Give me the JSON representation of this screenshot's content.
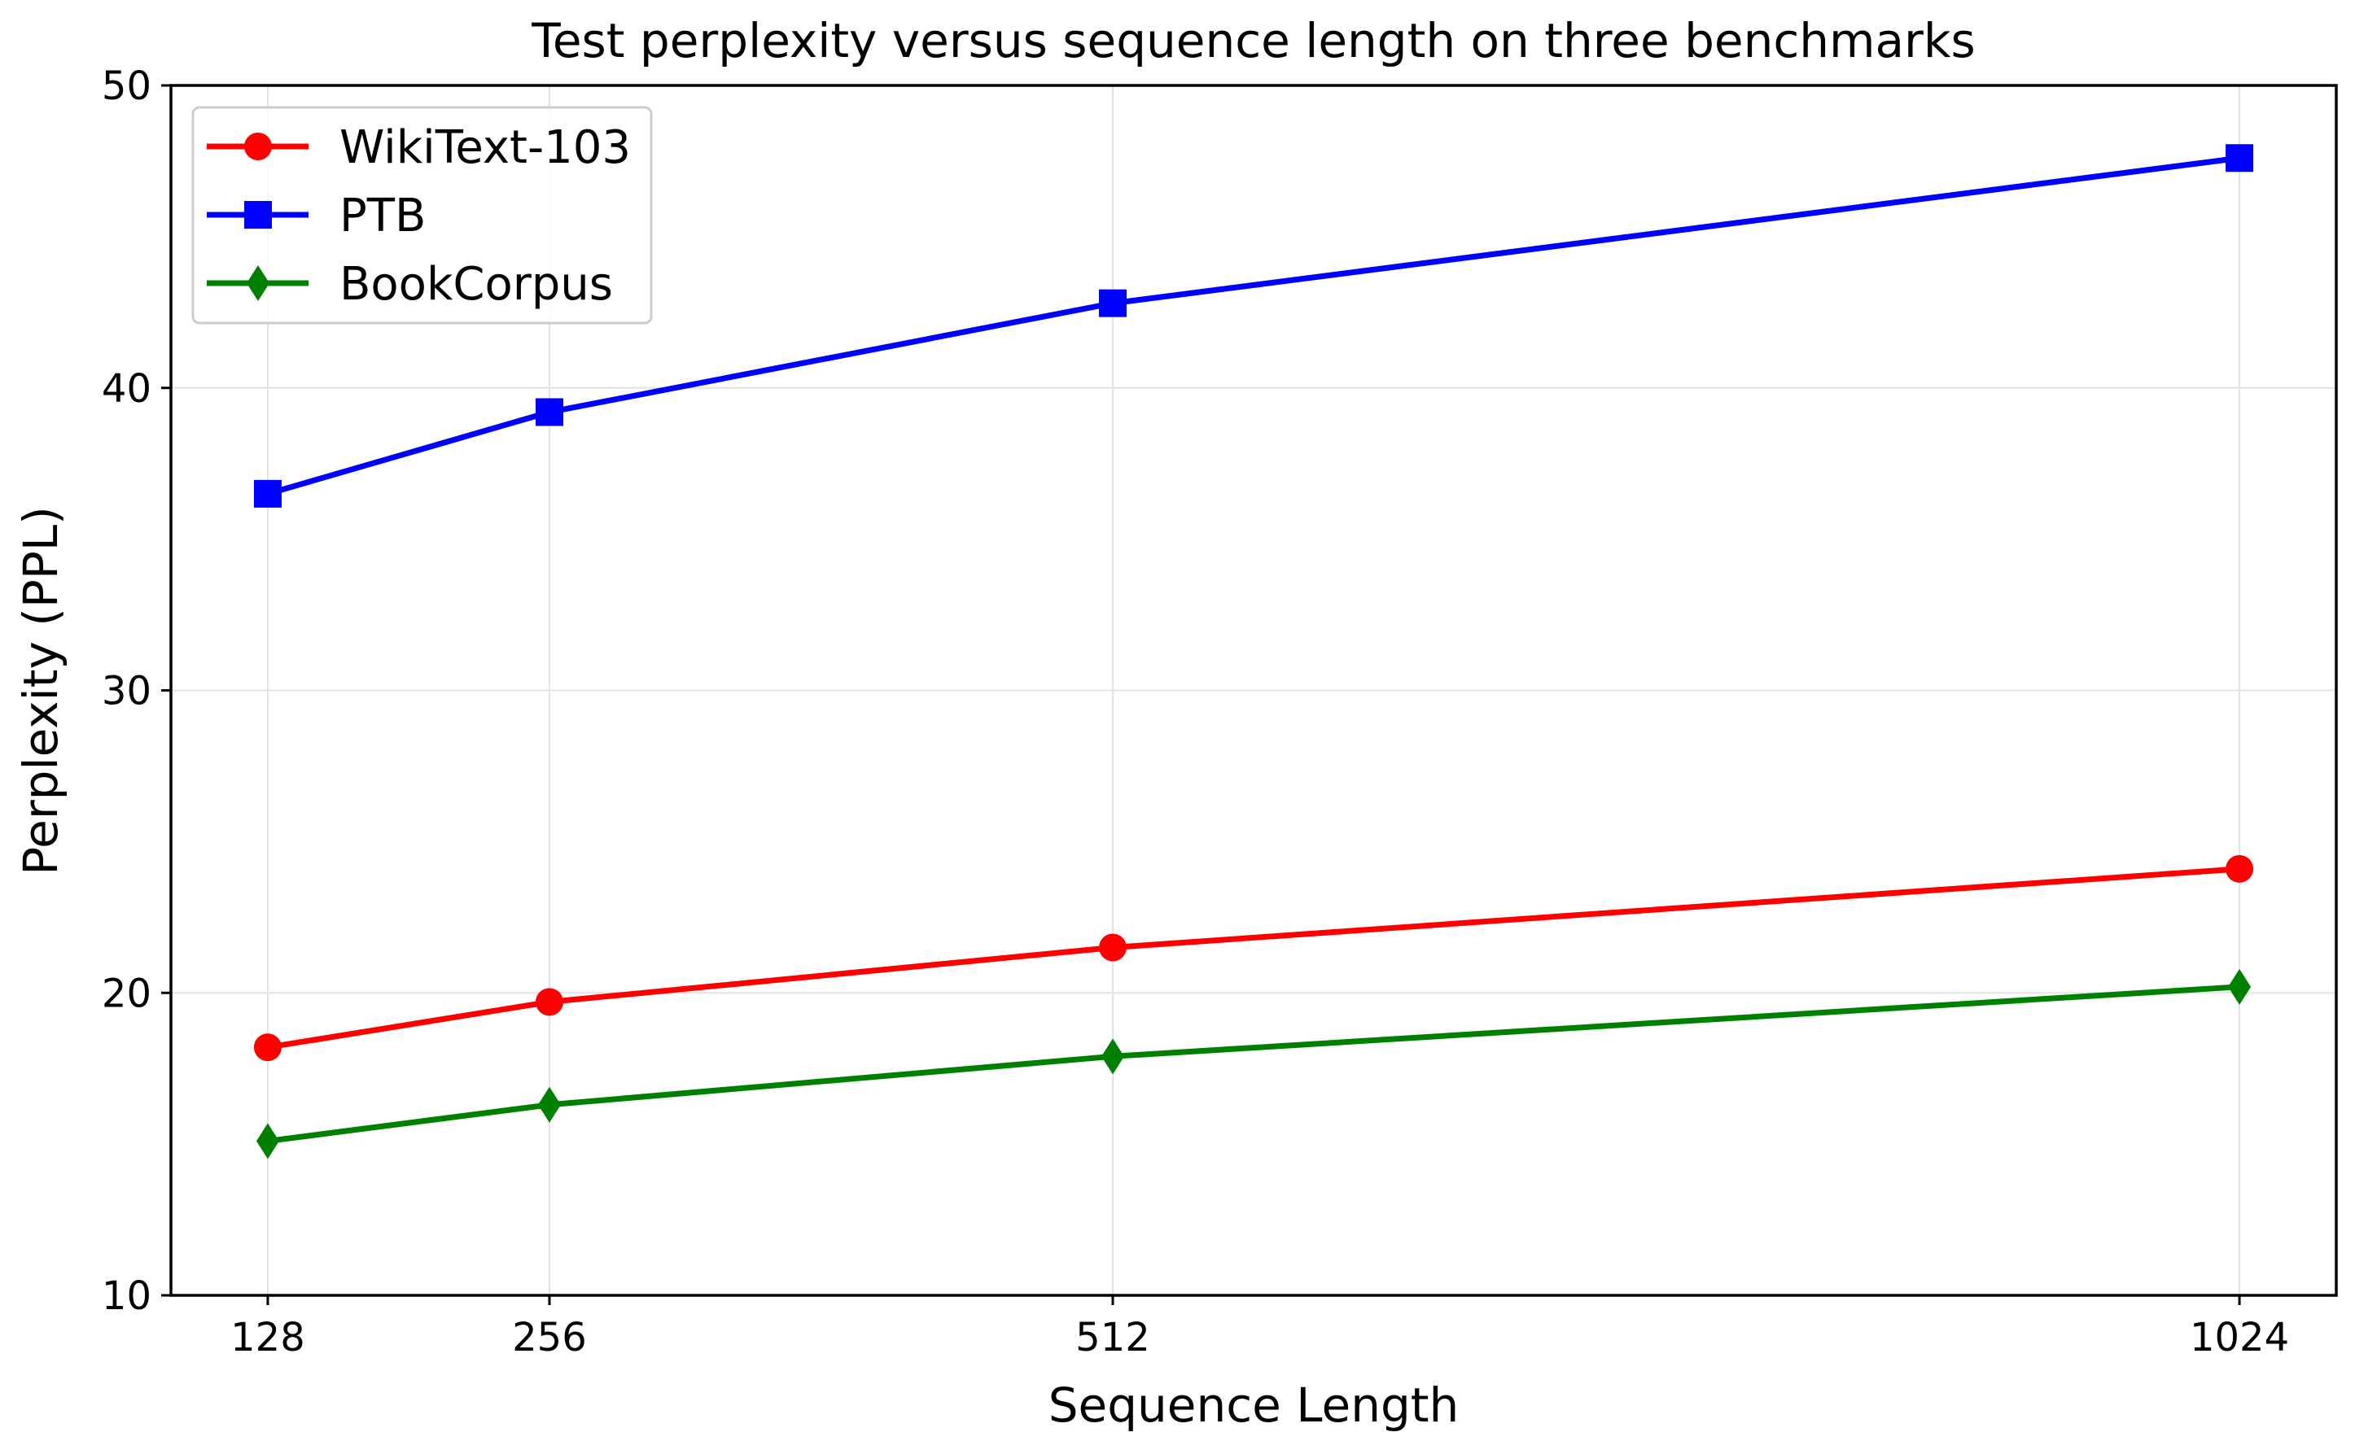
{
  "chart_data": {
    "type": "line",
    "title": "Test perplexity versus sequence length on three benchmarks",
    "xlabel": "Sequence Length",
    "ylabel": "Perplexity (PPL)",
    "x": [
      128,
      256,
      512,
      1024
    ],
    "xtick_labels": [
      "128",
      "256",
      "512",
      "1024"
    ],
    "xlim": [
      84,
      1068
    ],
    "ylim": [
      10,
      50
    ],
    "yticks": [
      10,
      20,
      30,
      40,
      50
    ],
    "ytick_labels": [
      "10",
      "20",
      "30",
      "40",
      "50"
    ],
    "grid": true,
    "legend_position": "top-left",
    "series": [
      {
        "name": "WikiText-103",
        "color": "#ff0000",
        "marker": "circle",
        "values": [
          18.2,
          19.7,
          21.5,
          24.1
        ]
      },
      {
        "name": "PTB",
        "color": "#0000ff",
        "marker": "square",
        "values": [
          36.5,
          39.2,
          42.8,
          47.6
        ]
      },
      {
        "name": "BookCorpus",
        "color": "#008000",
        "marker": "diamond",
        "values": [
          15.1,
          16.3,
          17.9,
          20.2
        ]
      }
    ]
  }
}
